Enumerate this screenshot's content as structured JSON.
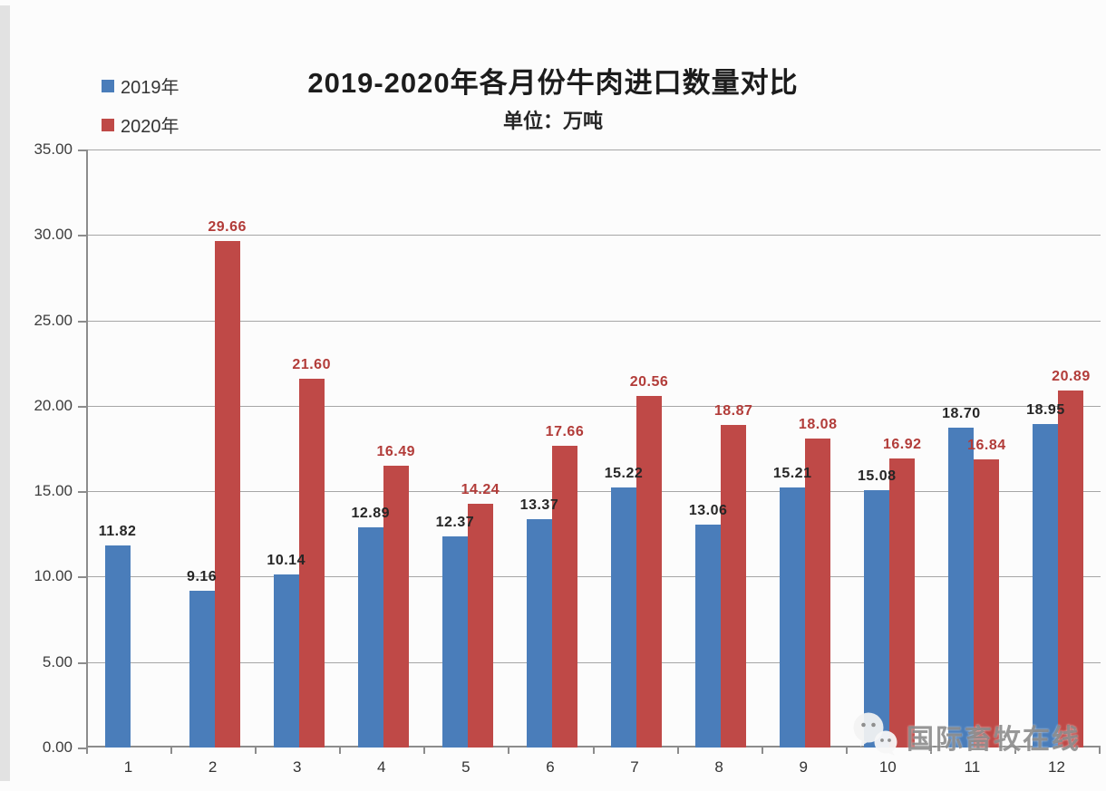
{
  "chart_data": {
    "type": "bar",
    "title": "2019-2020年各月份牛肉进口数量对比",
    "subtitle": "单位：万吨",
    "unit": "万吨",
    "categories": [
      "1",
      "2",
      "3",
      "4",
      "5",
      "6",
      "7",
      "8",
      "9",
      "10",
      "11",
      "12"
    ],
    "series": [
      {
        "name": "2019年",
        "color": "#4a7dba",
        "label_color": "#262626",
        "values": [
          11.82,
          9.16,
          10.14,
          12.89,
          12.37,
          13.37,
          15.22,
          13.06,
          15.21,
          15.08,
          18.7,
          18.95
        ]
      },
      {
        "name": "2020年",
        "color": "#bf4947",
        "label_color": "#b23c39",
        "values": [
          null,
          29.66,
          21.6,
          16.49,
          14.24,
          17.66,
          20.56,
          18.87,
          18.08,
          16.92,
          16.84,
          20.89
        ]
      }
    ],
    "ylim": [
      0,
      35
    ],
    "ytick_step": 5,
    "ytick_labels": [
      "0.00",
      "5.00",
      "10.00",
      "15.00",
      "20.00",
      "25.00",
      "30.00",
      "35.00"
    ],
    "grid": true,
    "legend_position": "top-left",
    "value_labels": true
  },
  "watermark": {
    "text": "国际畜牧在线",
    "icon": "wechat-icon"
  },
  "colors": {
    "bar_2019": "#4a7dba",
    "bar_2020": "#bf4947",
    "value_label_2019": "#262626",
    "value_label_2020": "#b23c39",
    "gridline": "#a6a6a6",
    "axis": "#8c8c8c",
    "background": "#fcfcfc"
  }
}
